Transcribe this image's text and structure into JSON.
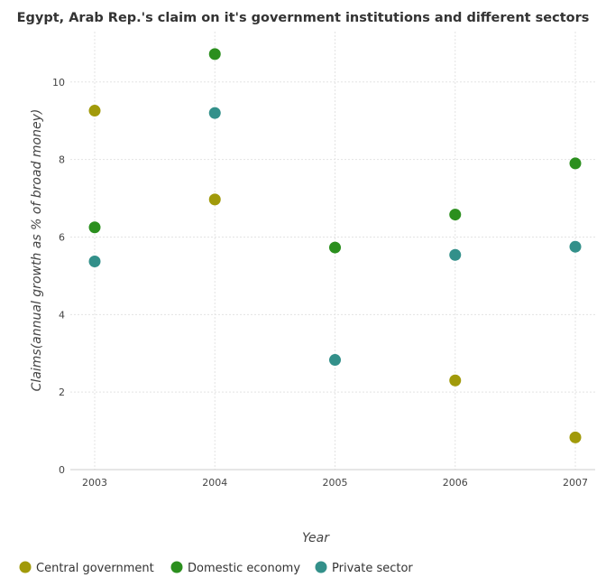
{
  "chart_data": {
    "type": "scatter",
    "title": "Egypt, Arab Rep.'s claim on it's government institutions and different sectors",
    "xlabel": "Year",
    "ylabel": "Claims(annual growth as % of broad money)",
    "categories": [
      "2003",
      "2004",
      "2005",
      "2006",
      "2007"
    ],
    "ylim": [
      0,
      11.3
    ],
    "yticks": [
      0,
      2,
      4,
      6,
      8,
      10
    ],
    "grid": true,
    "legend_position": "bottom",
    "series": [
      {
        "name": "Central government",
        "color": "#a19a0a",
        "values": [
          9.26,
          6.97,
          null,
          2.3,
          0.83
        ]
      },
      {
        "name": "Domestic economy",
        "color": "#2b8f1e",
        "values": [
          6.25,
          10.72,
          5.73,
          6.58,
          7.9
        ]
      },
      {
        "name": "Private sector",
        "color": "#33908a",
        "values": [
          5.37,
          9.2,
          2.83,
          5.54,
          5.75
        ]
      }
    ]
  }
}
